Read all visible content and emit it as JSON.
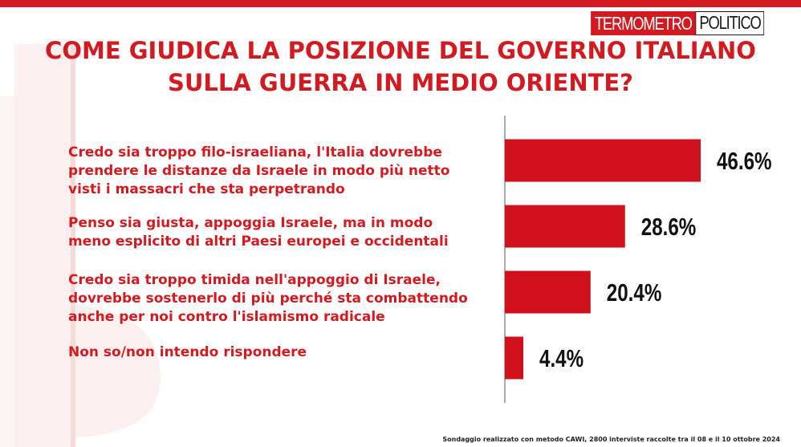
{
  "logo": {
    "part1": "TERMOMETRO",
    "part2": "POLITICO"
  },
  "header": {
    "title_line1": "COME GIUDICA LA POSIZIONE DEL GOVERNO ITALIANO",
    "title_line2": "SULLA GUERRA IN MEDIO ORIENTE?"
  },
  "colors": {
    "accent": "#d21a20",
    "bar": "#d0101a",
    "text_dark": "#111111"
  },
  "chart_data": {
    "type": "bar",
    "orientation": "horizontal",
    "title": "COME GIUDICA LA POSIZIONE DEL GOVERNO ITALIANO SULLA GUERRA IN MEDIO ORIENTE?",
    "categories": [
      [
        "Credo sia troppo filo-israeliana, l'Italia dovrebbe",
        "prendere le distanze da Israele in modo più netto",
        "visti i massacri che sta perpetrando"
      ],
      [
        "Penso sia giusta, appoggia Israele, ma in modo",
        "meno esplicito di altri Paesi europei e occidentali"
      ],
      [
        "Credo sia troppo timida nell'appoggio di Israele,",
        "dovrebbe sostenerlo di più perché sta combattendo",
        "anche per noi contro l'islamismo radicale"
      ],
      [
        "Non so/non intendo rispondere"
      ]
    ],
    "values": [
      46.6,
      28.6,
      20.4,
      4.4
    ],
    "value_labels": [
      "46.6%",
      "28.6%",
      "20.4%",
      "4.4%"
    ],
    "unit": "%",
    "xlim": [
      0,
      60
    ],
    "grid": false,
    "legend": "none"
  },
  "footnote": "Sondaggio realizzato con metodo CAWI, 2800 interviste raccolte tra il 08 e il  10 ottobre 2024"
}
